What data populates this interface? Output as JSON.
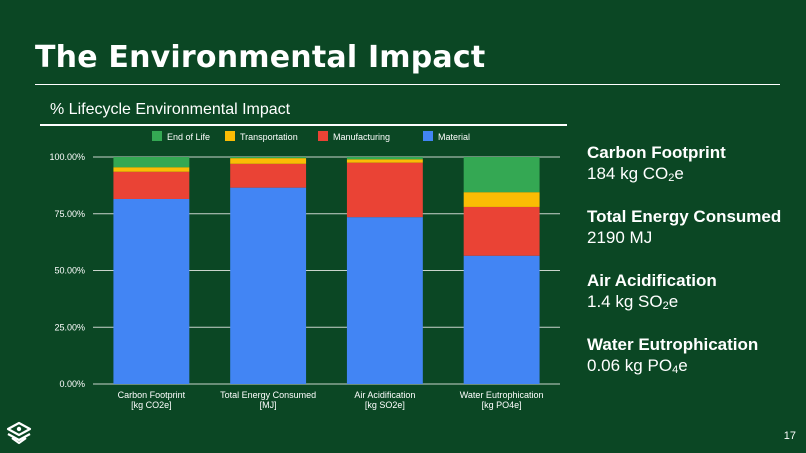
{
  "slide": {
    "title": "The Environmental Impact",
    "page_number": "17"
  },
  "chart_data": {
    "type": "bar",
    "stacked": true,
    "title": "% Lifecycle Environmental Impact",
    "categories": [
      [
        "Carbon Footprint",
        "[kg CO2e]"
      ],
      [
        "Total Energy Consumed",
        "[MJ]"
      ],
      [
        "Air Acidification",
        "[kg SO2e]"
      ],
      [
        "Water Eutrophication",
        "[kg PO4e]"
      ]
    ],
    "series": [
      {
        "name": "Material",
        "color": "#4285f4",
        "values": [
          81.5,
          86.5,
          73.5,
          56.5
        ]
      },
      {
        "name": "Manufacturing",
        "color": "#ea4335",
        "values": [
          12,
          10.5,
          24,
          21.5
        ]
      },
      {
        "name": "Transportation",
        "color": "#fbbc04",
        "values": [
          2,
          2.5,
          1.5,
          6.5
        ]
      },
      {
        "name": "End of Life",
        "color": "#34a853",
        "values": [
          4.5,
          0.5,
          1,
          15.5
        ]
      }
    ],
    "legend_order": [
      "End of Life",
      "Transportation",
      "Manufacturing",
      "Material"
    ],
    "legend_position": "top",
    "yticks": [
      "0.00%",
      "25.00%",
      "50.00%",
      "75.00%",
      "100.00%"
    ],
    "ylim": [
      0,
      100
    ],
    "grid": true
  },
  "metrics": [
    {
      "label": "Carbon Footprint",
      "value_pre": "184 kg CO",
      "value_sub": "2",
      "value_post": "e"
    },
    {
      "label": "Total Energy Consumed",
      "value_pre": "2190 MJ",
      "value_sub": "",
      "value_post": ""
    },
    {
      "label": "Air Acidification",
      "value_pre": "1.4 kg SO",
      "value_sub": "2",
      "value_post": "e"
    },
    {
      "label": "Water Eutrophication",
      "value_pre": "0.06 kg PO",
      "value_sub": "4",
      "value_post": "e"
    }
  ],
  "logo_icon": "layered-eye-logo-icon"
}
